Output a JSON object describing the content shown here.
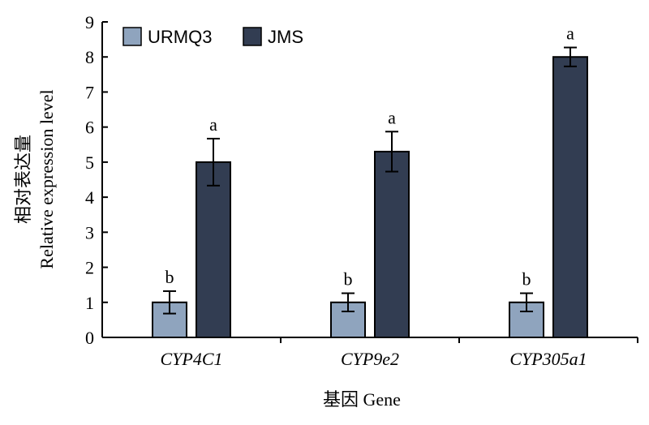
{
  "chart_data": {
    "type": "bar",
    "categories": [
      "CYP4C1",
      "CYP9e2",
      "CYP305a1"
    ],
    "series": [
      {
        "name": "URMQ3",
        "color": "#8fa4be",
        "values": [
          1.0,
          1.0,
          1.0
        ],
        "errors": [
          0.32,
          0.26,
          0.26
        ],
        "labels": [
          "b",
          "b",
          "b"
        ]
      },
      {
        "name": "JMS",
        "color": "#323d52",
        "values": [
          5.0,
          5.3,
          8.0
        ],
        "errors": [
          0.67,
          0.57,
          0.27
        ],
        "labels": [
          "a",
          "a",
          "a"
        ]
      }
    ],
    "xlabel": "基因 Gene",
    "ylabel_cn": "相对表达量",
    "ylabel_en": "Relative expression level",
    "ylim": [
      0,
      9
    ],
    "yticks": [
      0,
      1,
      2,
      3,
      4,
      5,
      6,
      7,
      8,
      9
    ],
    "legend_position": "top-left",
    "grid": false
  }
}
